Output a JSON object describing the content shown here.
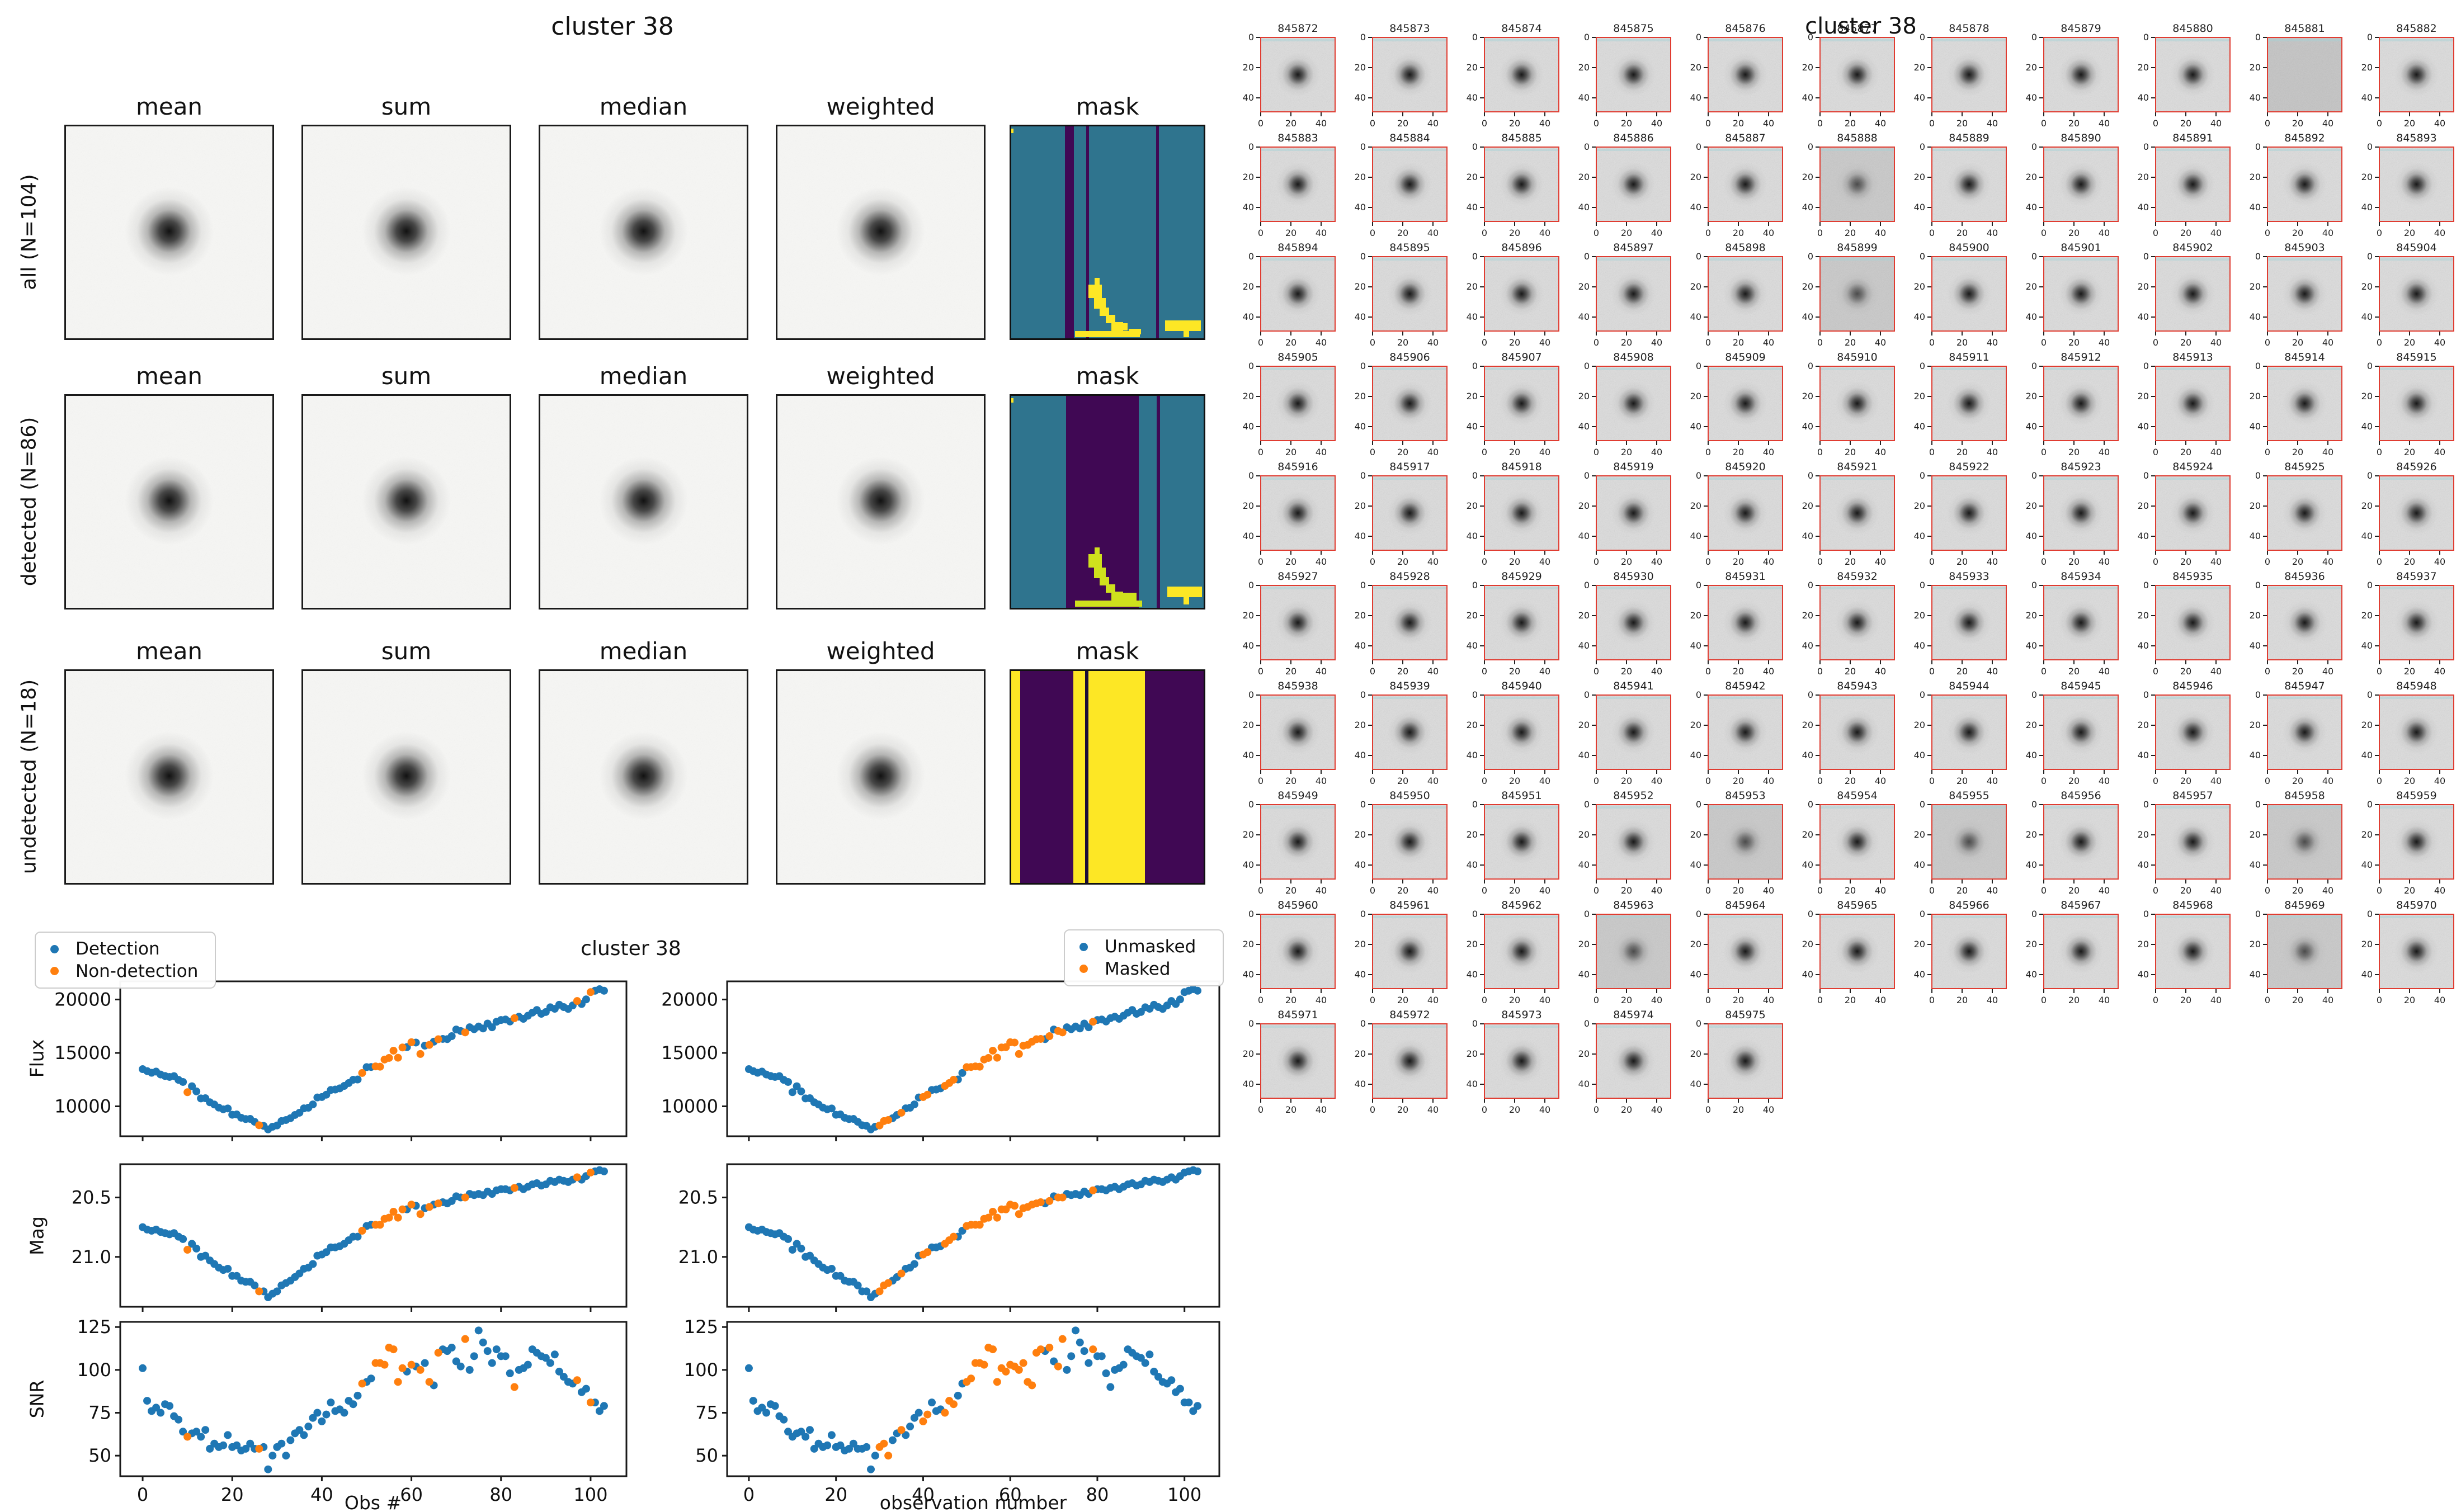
{
  "figure1": {
    "title": "cluster 38",
    "column_headers": [
      "mean",
      "sum",
      "median",
      "weighted",
      "mask"
    ],
    "rows": [
      {
        "label": "all (N=104)"
      },
      {
        "label": "detected (N=86)"
      },
      {
        "label": "undetected (N=18)"
      }
    ],
    "mask_colors": {
      "teal": "#2f748e",
      "purple": "#400854",
      "yellow": "#fde725",
      "yellowgreen": "#cfe11d",
      "darkline": "#1a0b38"
    },
    "masks": [
      {
        "bg": "#2f748e",
        "rects": [
          [
            "#400854",
            0.28,
            0,
            0.045,
            1
          ],
          [
            "#400854",
            0.39,
            0,
            0.015,
            1
          ],
          [
            "#400854",
            0.752,
            0,
            0.015,
            1
          ],
          [
            "#fde725",
            0,
            0.01,
            0.012,
            0.022
          ],
          [
            "#fde725",
            0.433,
            0.716,
            0.026,
            0.034
          ],
          [
            "#fde725",
            0.4,
            0.748,
            0.07,
            0.062
          ],
          [
            "#fde725",
            0.43,
            0.81,
            0.06,
            0.05
          ],
          [
            "#fde725",
            0.46,
            0.855,
            0.05,
            0.04
          ],
          [
            "#fde725",
            0.49,
            0.89,
            0.05,
            0.04
          ],
          [
            "#fde725",
            0.52,
            0.923,
            0.06,
            0.045
          ],
          [
            "#fde725",
            0.33,
            0.965,
            0.34,
            0.03
          ],
          [
            "#fde725",
            0.565,
            0.93,
            0.04,
            0.032
          ],
          [
            "#fde725",
            0.61,
            0.955,
            0.065,
            0.026
          ],
          [
            "#fde725",
            0.8,
            0.915,
            0.185,
            0.05
          ],
          [
            "#fde725",
            0.895,
            0.955,
            0.03,
            0.04
          ]
        ]
      },
      {
        "bg": "#2f748e",
        "rects": [
          [
            "#400854",
            0.285,
            0,
            0.377,
            1
          ],
          [
            "#400854",
            0.757,
            0,
            0.015,
            1
          ],
          [
            "#fde725",
            0,
            0.01,
            0.012,
            0.022
          ],
          [
            "#cfe11d",
            0.433,
            0.716,
            0.026,
            0.034
          ],
          [
            "#cfe11d",
            0.4,
            0.748,
            0.07,
            0.062
          ],
          [
            "#cfe11d",
            0.43,
            0.81,
            0.06,
            0.05
          ],
          [
            "#cfe11d",
            0.46,
            0.855,
            0.05,
            0.04
          ],
          [
            "#cfe11d",
            0.49,
            0.89,
            0.05,
            0.04
          ],
          [
            "#cfe11d",
            0.52,
            0.923,
            0.06,
            0.045
          ],
          [
            "#cfe11d",
            0.33,
            0.965,
            0.35,
            0.03
          ],
          [
            "#cfe11d",
            0.56,
            0.93,
            0.09,
            0.035
          ],
          [
            "#fde725",
            0.81,
            0.9,
            0.18,
            0.05
          ],
          [
            "#fde725",
            0.895,
            0.945,
            0.03,
            0.04
          ]
        ]
      },
      {
        "bg": "#400854",
        "rects": [
          [
            "#fde725",
            0,
            0,
            0.047,
            1
          ],
          [
            "#fde725",
            0.324,
            0,
            0.06,
            1
          ],
          [
            "#1a0b38",
            0.384,
            0,
            0.016,
            1
          ],
          [
            "#fde725",
            0.4,
            0,
            0.295,
            1
          ]
        ]
      }
    ]
  },
  "light_curves": {
    "title": "cluster 38",
    "left_legend": [
      "Detection",
      "Non-detection"
    ],
    "right_legend": [
      "Unmasked",
      "Masked"
    ],
    "xlabel_left": "Obs #",
    "xlabel_right": "observation number",
    "ylabels": [
      "Flux",
      "Mag",
      "SNR"
    ],
    "colors": {
      "primary": "#1f77b4",
      "secondary": "#ff7f0e"
    }
  },
  "chart_data": {
    "type": "scatter",
    "suptitle": "cluster 38",
    "n_points": 104,
    "x_is_index": true,
    "flux": [
      13480,
      13300,
      13140,
      13250,
      12980,
      12840,
      12750,
      12830,
      12480,
      12280,
      11320,
      11880,
      11400,
      10740,
      10760,
      10380,
      10170,
      9880,
      9720,
      9800,
      9210,
      9240,
      8930,
      8810,
      8820,
      8550,
      8230,
      8170,
      7840,
      8090,
      8210,
      8620,
      8720,
      8890,
      9190,
      9400,
      9810,
      9870,
      10180,
      10830,
      10870,
      11090,
      11530,
      11570,
      11680,
      11910,
      12180,
      12490,
      12510,
      13120,
      13670,
      13680,
      13740,
      13710,
      14380,
      14530,
      15210,
      14550,
      15510,
      15540,
      16000,
      15970,
      14900,
      15680,
      15750,
      16050,
      16280,
      16310,
      16290,
      16570,
      17190,
      17050,
      16920,
      17400,
      17220,
      17470,
      17290,
      17750,
      17400,
      17920,
      18080,
      18130,
      17940,
      18250,
      18390,
      18190,
      18480,
      18770,
      19020,
      18660,
      18830,
      19270,
      19130,
      19510,
      19290,
      19120,
      19440,
      19860,
      19580,
      20010,
      20690,
      20820,
      20970,
      20820
    ],
    "mag": [
      20.75,
      20.77,
      20.78,
      20.77,
      20.79,
      20.8,
      20.81,
      20.8,
      20.83,
      20.85,
      20.94,
      20.89,
      20.93,
      21.0,
      20.99,
      21.03,
      21.06,
      21.09,
      21.11,
      21.1,
      21.16,
      21.16,
      21.2,
      21.21,
      21.21,
      21.24,
      21.29,
      21.29,
      21.34,
      21.31,
      21.29,
      21.24,
      21.22,
      21.2,
      21.17,
      21.14,
      21.1,
      21.09,
      21.06,
      20.99,
      20.98,
      20.96,
      20.92,
      20.92,
      20.91,
      20.89,
      20.86,
      20.83,
      20.83,
      20.78,
      20.74,
      20.73,
      20.73,
      20.73,
      20.68,
      20.67,
      20.62,
      20.67,
      20.6,
      20.6,
      20.56,
      20.57,
      20.64,
      20.59,
      20.58,
      20.56,
      20.55,
      20.54,
      20.55,
      20.53,
      20.49,
      20.5,
      20.5,
      20.47,
      20.48,
      20.47,
      20.48,
      20.45,
      20.47,
      20.44,
      20.43,
      20.43,
      20.44,
      20.42,
      20.41,
      20.43,
      20.41,
      20.39,
      20.38,
      20.4,
      20.39,
      20.36,
      20.37,
      20.35,
      20.36,
      20.37,
      20.35,
      20.33,
      20.35,
      20.32,
      20.29,
      20.28,
      20.27,
      20.28
    ],
    "snr": [
      101,
      82,
      76,
      78,
      75,
      80,
      79,
      73,
      71,
      64,
      61,
      63,
      64,
      61,
      65,
      54,
      57,
      55,
      56,
      62,
      55,
      56,
      53,
      54,
      57,
      54,
      54,
      55,
      42,
      50,
      55,
      57,
      50,
      59,
      63,
      65,
      62,
      67,
      72,
      75,
      70,
      74,
      81,
      76,
      77,
      75,
      82,
      80,
      85,
      92,
      93,
      95,
      104,
      104,
      103,
      113,
      112,
      93,
      101,
      99,
      103,
      102,
      100,
      104,
      93,
      91,
      110,
      112,
      111,
      113,
      105,
      102,
      118,
      100,
      108,
      123,
      116,
      111,
      104,
      112,
      108,
      108,
      98,
      90,
      100,
      101,
      103,
      112,
      110,
      108,
      107,
      104,
      109,
      99,
      96,
      93,
      92,
      94,
      87,
      89,
      81,
      81,
      76,
      79
    ],
    "non_detection_idx": [
      10,
      26,
      49,
      52,
      53,
      54,
      55,
      56,
      57,
      58,
      60,
      62,
      64,
      66,
      72,
      83,
      97,
      100
    ],
    "masked_idx": [
      30,
      31,
      32,
      35,
      40,
      41,
      45,
      46,
      47,
      50,
      51,
      52,
      53,
      54,
      55,
      56,
      57,
      58,
      59,
      60,
      61,
      62,
      63,
      64,
      65,
      66,
      67,
      69,
      71,
      72,
      79
    ],
    "panels": [
      {
        "name": "left",
        "xlabel": "Obs #",
        "legend": [
          "Detection",
          "Non-detection"
        ]
      },
      {
        "name": "right",
        "xlabel": "observation number",
        "legend": [
          "Unmasked",
          "Masked"
        ]
      }
    ],
    "x_axis": {
      "range": [
        -5,
        108
      ],
      "ticks": [
        0,
        20,
        40,
        60,
        80,
        100
      ],
      "tick_labels": [
        "0",
        "20",
        "40",
        "60",
        "80",
        "100"
      ]
    },
    "y_axes": {
      "flux": {
        "label": "Flux",
        "range": [
          7200,
          21700
        ],
        "ticks": [
          10000,
          15000,
          20000
        ],
        "tick_labels": [
          "10000",
          "15000",
          "20000"
        ],
        "inverted": false
      },
      "mag": {
        "label": "Mag",
        "range": [
          20.22,
          21.42
        ],
        "ticks": [
          20.5,
          21.0
        ],
        "tick_labels": [
          "20.5",
          "21.0"
        ],
        "inverted": true
      },
      "snr": {
        "label": "SNR",
        "range": [
          38,
          128
        ],
        "ticks": [
          50,
          75,
          100,
          125
        ],
        "tick_labels": [
          "50",
          "75",
          "100",
          "125"
        ],
        "inverted": false
      }
    },
    "grid": false,
    "legend_positions": {
      "left": "upper left",
      "right": "upper right"
    }
  },
  "stamp_grid": {
    "suptitle": "cluster 38",
    "x_tick_labels": [
      "0",
      "20",
      "40"
    ],
    "y_tick_labels": [
      "0",
      "20",
      "40"
    ],
    "border_color": "#e03c31",
    "ids": [
      845872,
      845873,
      845874,
      845875,
      845876,
      845877,
      845878,
      845879,
      845880,
      845881,
      845882,
      845883,
      845884,
      845885,
      845886,
      845887,
      845888,
      845889,
      845890,
      845891,
      845892,
      845893,
      845894,
      845895,
      845896,
      845897,
      845898,
      845899,
      845900,
      845901,
      845902,
      845903,
      845904,
      845905,
      845906,
      845907,
      845908,
      845909,
      845910,
      845911,
      845912,
      845913,
      845914,
      845915,
      845916,
      845917,
      845918,
      845919,
      845920,
      845921,
      845922,
      845923,
      845924,
      845925,
      845926,
      845927,
      845928,
      845929,
      845930,
      845931,
      845932,
      845933,
      845934,
      845935,
      845936,
      845937,
      845938,
      845939,
      845940,
      845941,
      845942,
      845943,
      845944,
      845945,
      845946,
      845947,
      845948,
      845949,
      845950,
      845951,
      845952,
      845953,
      845954,
      845955,
      845956,
      845957,
      845958,
      845959,
      845960,
      845961,
      845962,
      845963,
      845964,
      845965,
      845966,
      845967,
      845968,
      845969,
      845970,
      845971,
      845972,
      845973,
      845974,
      845975
    ],
    "flat_ids": [
      845881
    ],
    "dark_ids": [
      845888,
      845899,
      845953,
      845955,
      845958,
      845963,
      845969
    ]
  }
}
